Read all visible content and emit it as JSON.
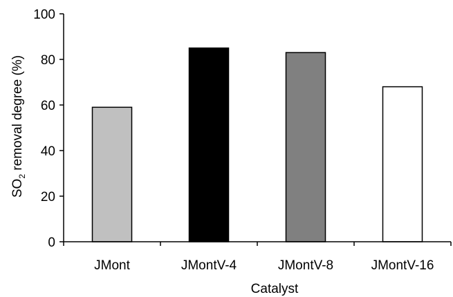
{
  "chart_data": {
    "type": "bar",
    "xlabel": "Catalyst",
    "ylabel": {
      "prefix": "SO",
      "subscript": "2",
      "suffix": " removal degree (%)"
    },
    "ylim": [
      0,
      100
    ],
    "yticks": [
      0,
      20,
      40,
      60,
      80,
      100
    ],
    "categories": [
      "JMont",
      "JMontV-4",
      "JMontV-8",
      "JMontV-16"
    ],
    "values": [
      59,
      85,
      83,
      68
    ],
    "bar_colors": [
      "#c0c0c0",
      "#000000",
      "#808080",
      "#ffffff"
    ],
    "bar_stroke": "#000000",
    "grid": false,
    "legend": "none"
  }
}
